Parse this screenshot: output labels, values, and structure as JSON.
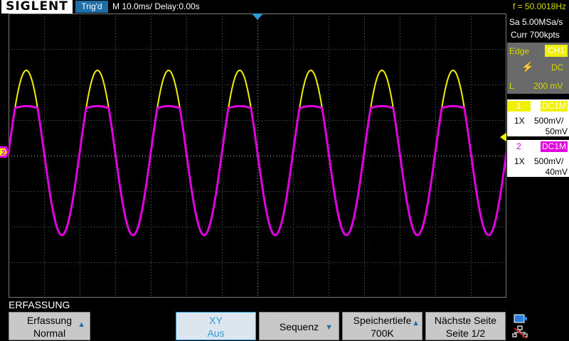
{
  "header": {
    "logo": "SIGLENT",
    "trigger_status": "Trig'd",
    "timebase": "M 10.0ms/ Delay:0.00s",
    "frequency": "f = 50.0018Hz"
  },
  "acquisition": {
    "sample_rate": "Sa 5.00MSa/s",
    "memory": "Curr 700kpts"
  },
  "trigger": {
    "type": "Edge",
    "source": "CH1",
    "coupling": "DC",
    "level_label": "L",
    "level": "200 mV"
  },
  "channels": [
    {
      "number": "1",
      "coupling": "DC1M",
      "probe": "1X",
      "scale": "500mV/",
      "offset": "50mV",
      "color": "#f0f000"
    },
    {
      "number": "2",
      "coupling": "DC1M",
      "probe": "1X",
      "scale": "500mV/",
      "offset": "40mV",
      "color": "#e000e0"
    }
  ],
  "waveform": {
    "cycles": 7,
    "ch1_color": "#f0f000",
    "ch2_color": "#e000e0"
  },
  "menu": {
    "title": "ERFASSUNG",
    "buttons": [
      {
        "line1": "Erfassung",
        "line2": "Normal"
      },
      {
        "line1": "XY",
        "line2": "Aus"
      },
      {
        "line1": "Sequenz",
        "line2": ""
      },
      {
        "line1": "Speichertiefe",
        "line2": "700K"
      },
      {
        "line1": "Nächste Seite",
        "line2": "Seite 1/2"
      }
    ]
  },
  "markers": {
    "ch2_marker": "2"
  }
}
